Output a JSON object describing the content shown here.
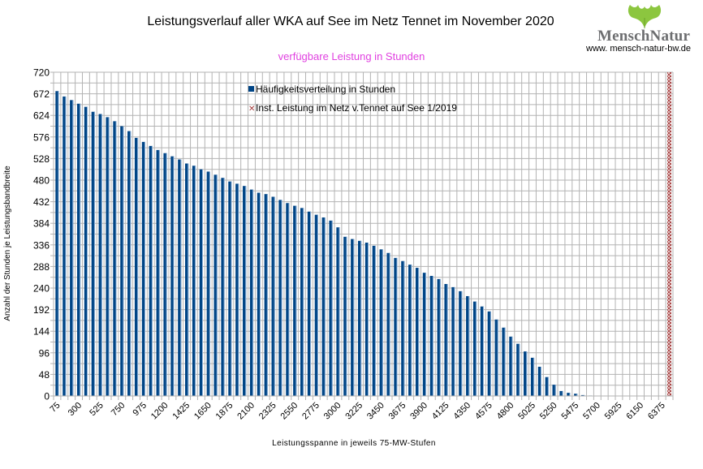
{
  "header": {
    "title": "Leistungsverlauf aller WKA auf See im Netz Tennet im November 2020",
    "subtitle": "verfügbare Leistung in Stunden",
    "subtitle_color": "#e040e0"
  },
  "logo": {
    "brand_left": "Mensch",
    "brand_right": "Natur",
    "url": "www. mensch-natur-bw.de",
    "leaf_color": "#8cc63f",
    "text_color": "#6d6e70",
    "icon": "ginkgo-leaf-icon"
  },
  "chart_data": {
    "type": "bar",
    "title": "Leistungsverlauf aller WKA auf See im Netz Tennet im November 2020",
    "subtitle": "verfügbare Leistung in Stunden",
    "xlabel": "Leistungsspanne in jeweils 75-MW-Stufen",
    "ylabel": "Anzahl der Stunden je Leistungsbandbreite",
    "ylim": [
      0,
      720
    ],
    "y_ticks": [
      0,
      48,
      96,
      144,
      192,
      240,
      288,
      336,
      384,
      432,
      480,
      528,
      576,
      624,
      672,
      720
    ],
    "x_step": 75,
    "x_start": 75,
    "x_count": 86,
    "x_tick_labels": [
      "75",
      "300",
      "525",
      "750",
      "975",
      "1200",
      "1425",
      "1650",
      "1875",
      "2100",
      "2325",
      "2550",
      "2775",
      "3000",
      "3225",
      "3450",
      "3675",
      "3900",
      "4125",
      "4350",
      "4575",
      "4800",
      "5025",
      "5250",
      "5475",
      "5700",
      "5925",
      "6150",
      "6375"
    ],
    "x_tick_label_every": 3,
    "grid": true,
    "legend_position": "top-center",
    "series": [
      {
        "name": "Häufigkeitsverteilung in Stunden",
        "color": "#004586",
        "values": [
          678,
          666,
          658,
          650,
          643,
          632,
          627,
          620,
          611,
          600,
          589,
          574,
          565,
          556,
          547,
          540,
          533,
          526,
          517,
          512,
          504,
          499,
          492,
          485,
          477,
          472,
          467,
          459,
          452,
          449,
          443,
          436,
          429,
          423,
          418,
          410,
          403,
          397,
          390,
          375,
          354,
          349,
          345,
          341,
          334,
          326,
          318,
          307,
          300,
          292,
          285,
          274,
          267,
          260,
          249,
          242,
          233,
          222,
          210,
          199,
          188,
          170,
          152,
          132,
          116,
          99,
          85,
          65,
          42,
          25,
          11,
          7,
          5,
          2,
          1,
          0,
          0,
          0,
          0,
          0,
          0,
          0,
          0,
          0,
          0,
          0
        ]
      },
      {
        "name": "Inst. Leistung im Netz v.Tennet auf See 1/2019",
        "color": "#a33a3a",
        "marker": "hatched-full-height-bar",
        "x_value": 6450,
        "value": 720
      }
    ]
  }
}
